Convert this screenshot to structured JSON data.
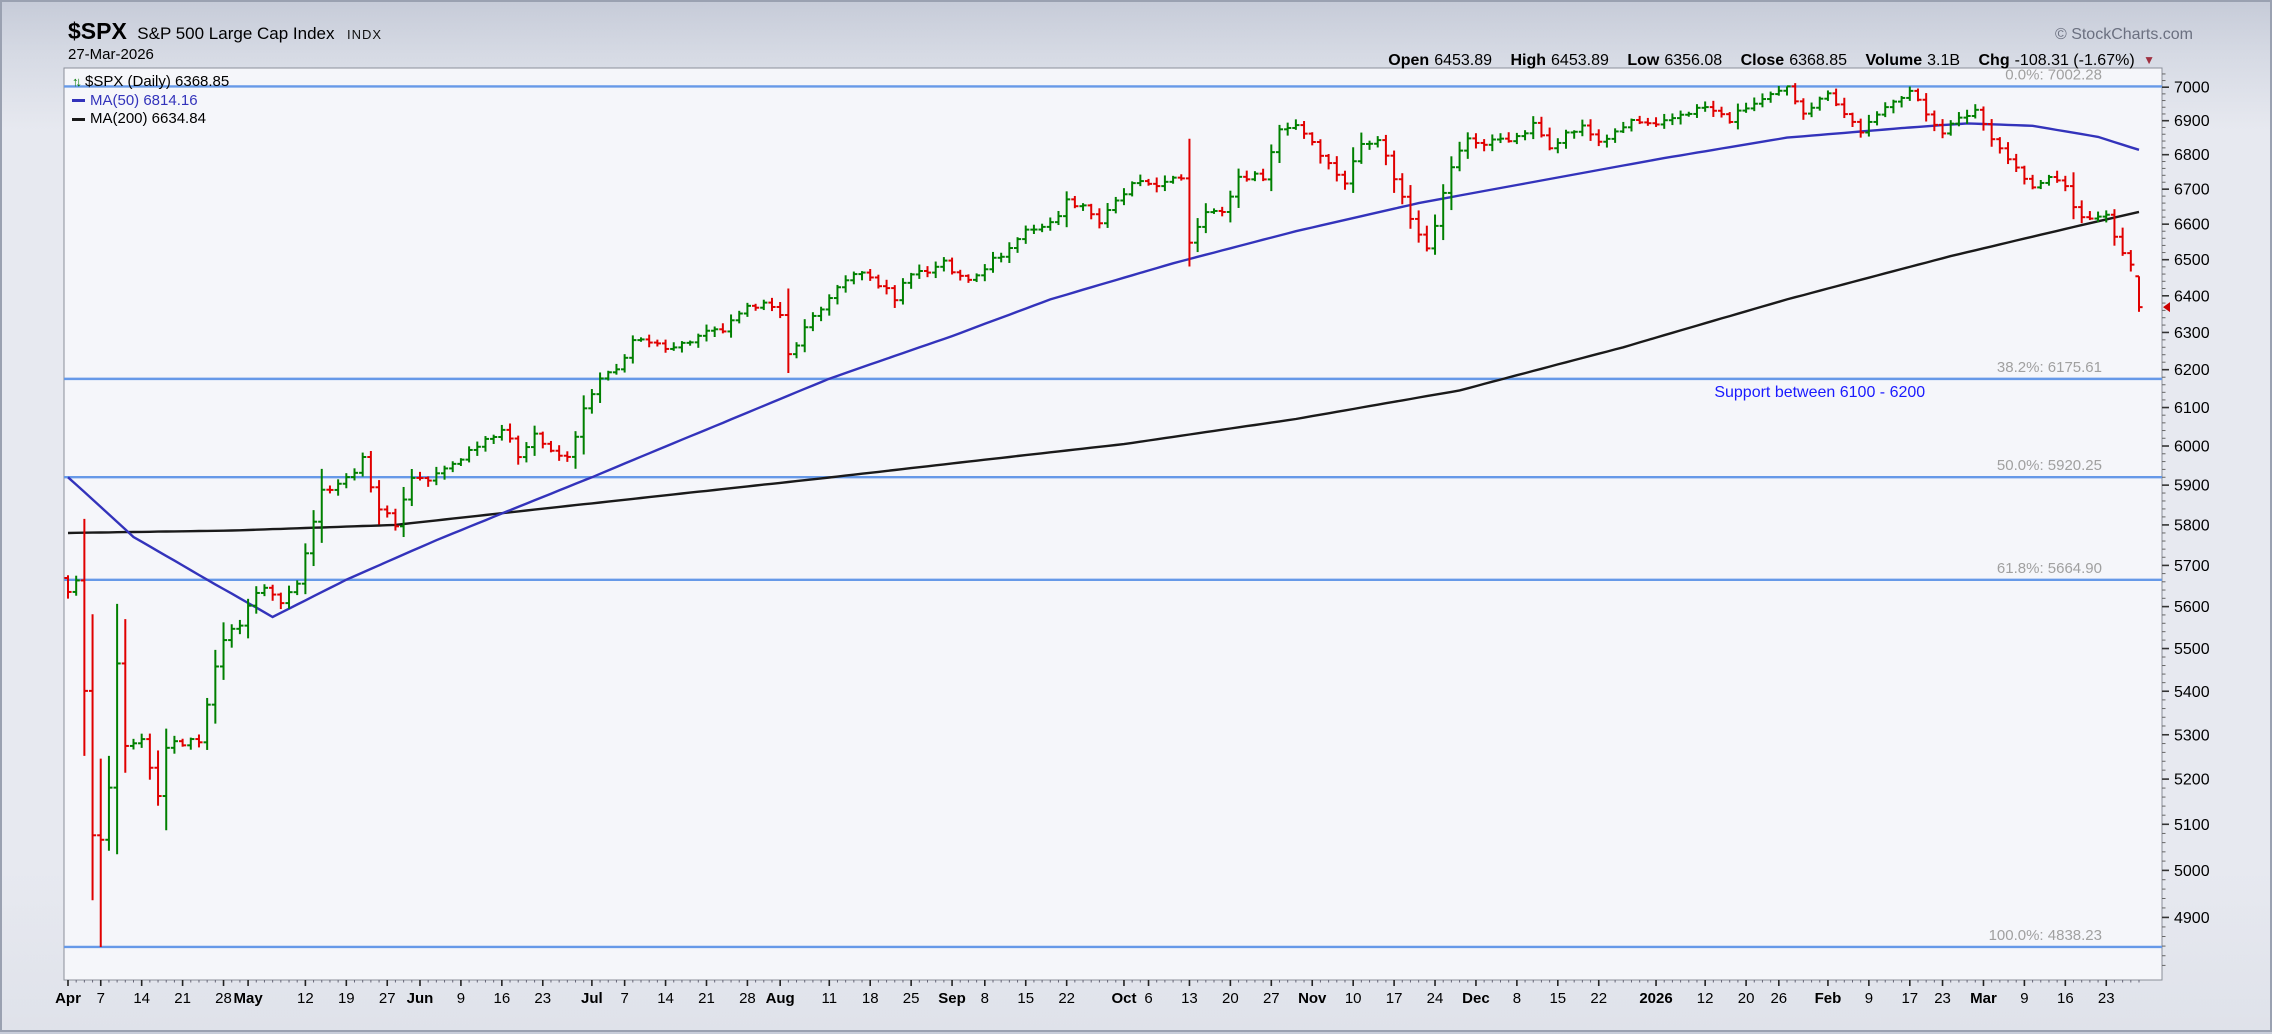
{
  "header": {
    "symbol": "$SPX",
    "name": "S&P 500 Large Cap Index",
    "exchange": "INDX",
    "date": "27-Mar-2026",
    "copyright": "© StockCharts.com"
  },
  "quote": {
    "open_label": "Open",
    "open_value": "6453.89",
    "high_label": "High",
    "high_value": "6453.89",
    "low_label": "Low",
    "low_value": "6356.08",
    "close_label": "Close",
    "close_value": "6368.85",
    "volume_label": "Volume",
    "volume_value": "3.1B",
    "chg_label": "Chg",
    "chg_value": "-108.31 (-1.67%)",
    "chg_direction_icon": "▼"
  },
  "legend": {
    "price_row": "$SPX (Daily) 6368.85",
    "ma50_row": "MA(50) 6814.16",
    "ma200_row": "MA(200) 6634.84"
  },
  "chart_data": {
    "type": "ohlc",
    "title": "$SPX S&P 500 Large Cap Index - Daily",
    "xlabel": "",
    "ylabel": "",
    "y_scale": "log",
    "y_log_domain": [
      4770,
      7058
    ],
    "y_ticks": {
      "min": 4900,
      "max": 7000,
      "step": 100,
      "minor_step": 20
    },
    "days": 253,
    "x_ticks": [
      {
        "d": 0,
        "t": "Apr",
        "b": 1
      },
      {
        "d": 4,
        "t": "7"
      },
      {
        "d": 9,
        "t": "14"
      },
      {
        "d": 14,
        "t": "21"
      },
      {
        "d": 19,
        "t": "28"
      },
      {
        "d": 22,
        "t": "May",
        "b": 1
      },
      {
        "d": 29,
        "t": "12"
      },
      {
        "d": 34,
        "t": "19"
      },
      {
        "d": 39,
        "t": "27"
      },
      {
        "d": 43,
        "t": "Jun",
        "b": 1
      },
      {
        "d": 48,
        "t": "9"
      },
      {
        "d": 53,
        "t": "16"
      },
      {
        "d": 58,
        "t": "23"
      },
      {
        "d": 64,
        "t": "Jul",
        "b": 1
      },
      {
        "d": 68,
        "t": "7"
      },
      {
        "d": 73,
        "t": "14"
      },
      {
        "d": 78,
        "t": "21"
      },
      {
        "d": 83,
        "t": "28"
      },
      {
        "d": 87,
        "t": "Aug",
        "b": 1
      },
      {
        "d": 93,
        "t": "11"
      },
      {
        "d": 98,
        "t": "18"
      },
      {
        "d": 103,
        "t": "25"
      },
      {
        "d": 108,
        "t": "Sep",
        "b": 1
      },
      {
        "d": 112,
        "t": "8"
      },
      {
        "d": 117,
        "t": "15"
      },
      {
        "d": 122,
        "t": "22"
      },
      {
        "d": 129,
        "t": "Oct",
        "b": 1
      },
      {
        "d": 132,
        "t": "6"
      },
      {
        "d": 137,
        "t": "13"
      },
      {
        "d": 142,
        "t": "20"
      },
      {
        "d": 147,
        "t": "27"
      },
      {
        "d": 152,
        "t": "Nov",
        "b": 1
      },
      {
        "d": 157,
        "t": "10"
      },
      {
        "d": 162,
        "t": "17"
      },
      {
        "d": 167,
        "t": "24"
      },
      {
        "d": 172,
        "t": "Dec",
        "b": 1
      },
      {
        "d": 177,
        "t": "8"
      },
      {
        "d": 182,
        "t": "15"
      },
      {
        "d": 187,
        "t": "22"
      },
      {
        "d": 194,
        "t": "2026",
        "b": 1
      },
      {
        "d": 200,
        "t": "12"
      },
      {
        "d": 205,
        "t": "20"
      },
      {
        "d": 209,
        "t": "26"
      },
      {
        "d": 215,
        "t": "Feb",
        "b": 1
      },
      {
        "d": 220,
        "t": "9"
      },
      {
        "d": 225,
        "t": "17"
      },
      {
        "d": 229,
        "t": "23"
      },
      {
        "d": 234,
        "t": "Mar",
        "b": 1
      },
      {
        "d": 239,
        "t": "9"
      },
      {
        "d": 244,
        "t": "16"
      },
      {
        "d": 249,
        "t": "23"
      }
    ],
    "fib_levels": [
      {
        "label": "0.0%: 7002.28",
        "value": 7002.28
      },
      {
        "label": "38.2%: 6175.61",
        "value": 6175.61
      },
      {
        "label": "50.0%: 5920.25",
        "value": 5920.25
      },
      {
        "label": "61.8%: 5664.90",
        "value": 5664.9
      },
      {
        "label": "100.0%: 4838.23",
        "value": 4838.23
      }
    ],
    "annotation": {
      "text": "Support between 6100 - 6200",
      "day": 214,
      "price": 6128
    },
    "series": [
      {
        "name": "$SPX close",
        "anchors": [
          [
            0,
            5630
          ],
          [
            1,
            5670
          ],
          [
            2,
            5396
          ],
          [
            3,
            5074
          ],
          [
            4,
            5062
          ],
          [
            5,
            5180
          ],
          [
            6,
            5457
          ],
          [
            7,
            5268
          ],
          [
            9,
            5283
          ],
          [
            11,
            5160
          ],
          [
            12,
            5275
          ],
          [
            14,
            5282
          ],
          [
            16,
            5288
          ],
          [
            17,
            5376
          ],
          [
            19,
            5525
          ],
          [
            21,
            5561
          ],
          [
            22,
            5604
          ],
          [
            24,
            5650
          ],
          [
            26,
            5607
          ],
          [
            28,
            5663
          ],
          [
            31,
            5886
          ],
          [
            34,
            5916
          ],
          [
            36,
            5963
          ],
          [
            38,
            5842
          ],
          [
            40,
            5803
          ],
          [
            42,
            5922
          ],
          [
            44,
            5912
          ],
          [
            46,
            5940
          ],
          [
            48,
            5970
          ],
          [
            50,
            6006
          ],
          [
            53,
            6045
          ],
          [
            55,
            5977
          ],
          [
            57,
            6033
          ],
          [
            59,
            5981
          ],
          [
            61,
            5968
          ],
          [
            63,
            6092
          ],
          [
            65,
            6173
          ],
          [
            67,
            6198
          ],
          [
            69,
            6279
          ],
          [
            72,
            6263
          ],
          [
            75,
            6268
          ],
          [
            78,
            6297
          ],
          [
            80,
            6306
          ],
          [
            83,
            6363
          ],
          [
            85,
            6390
          ],
          [
            87,
            6339
          ],
          [
            88,
            6238
          ],
          [
            91,
            6345
          ],
          [
            93,
            6389
          ],
          [
            96,
            6466
          ],
          [
            98,
            6450
          ],
          [
            101,
            6395
          ],
          [
            103,
            6467
          ],
          [
            105,
            6466
          ],
          [
            107,
            6501
          ],
          [
            108,
            6460
          ],
          [
            110,
            6448
          ],
          [
            112,
            6481
          ],
          [
            115,
            6532
          ],
          [
            117,
            6584
          ],
          [
            120,
            6600
          ],
          [
            122,
            6664
          ],
          [
            124,
            6656
          ],
          [
            126,
            6605
          ],
          [
            128,
            6661
          ],
          [
            130,
            6711
          ],
          [
            132,
            6716
          ],
          [
            134,
            6715
          ],
          [
            136,
            6735
          ],
          [
            137,
            6552
          ],
          [
            139,
            6644
          ],
          [
            141,
            6629
          ],
          [
            143,
            6735
          ],
          [
            146,
            6738
          ],
          [
            148,
            6875
          ],
          [
            150,
            6890
          ],
          [
            152,
            6840
          ],
          [
            154,
            6772
          ],
          [
            156,
            6720
          ],
          [
            158,
            6833
          ],
          [
            160,
            6851
          ],
          [
            162,
            6734
          ],
          [
            164,
            6617
          ],
          [
            166,
            6539
          ],
          [
            167,
            6603
          ],
          [
            169,
            6766
          ],
          [
            171,
            6849
          ],
          [
            173,
            6829
          ],
          [
            175,
            6850
          ],
          [
            177,
            6846
          ],
          [
            179,
            6886
          ],
          [
            181,
            6828
          ],
          [
            183,
            6861
          ],
          [
            185,
            6880
          ],
          [
            187,
            6840
          ],
          [
            189,
            6860
          ],
          [
            191,
            6900
          ],
          [
            194,
            6880
          ],
          [
            197,
            6920
          ],
          [
            200,
            6940
          ],
          [
            203,
            6902
          ],
          [
            205,
            6940
          ],
          [
            208,
            6970
          ],
          [
            210,
            6996
          ],
          [
            212,
            6930
          ],
          [
            214,
            6960
          ],
          [
            215,
            6990
          ],
          [
            217,
            6920
          ],
          [
            219,
            6870
          ],
          [
            221,
            6910
          ],
          [
            223,
            6965
          ],
          [
            225,
            6989
          ],
          [
            227,
            6920
          ],
          [
            229,
            6870
          ],
          [
            231,
            6902
          ],
          [
            233,
            6933
          ],
          [
            234,
            6890
          ],
          [
            236,
            6820
          ],
          [
            238,
            6760
          ],
          [
            240,
            6700
          ],
          [
            242,
            6733
          ],
          [
            244,
            6715
          ],
          [
            245,
            6640
          ],
          [
            247,
            6610
          ],
          [
            248,
            6630
          ],
          [
            249,
            6620
          ],
          [
            250,
            6560
          ],
          [
            251,
            6520
          ],
          [
            252,
            6477
          ],
          [
            253,
            6368.85
          ]
        ]
      },
      {
        "name": "MA(50)",
        "anchors": [
          [
            0,
            5920
          ],
          [
            8,
            5770
          ],
          [
            17,
            5665
          ],
          [
            25,
            5575
          ],
          [
            34,
            5665
          ],
          [
            45,
            5762
          ],
          [
            64,
            5920
          ],
          [
            80,
            6060
          ],
          [
            93,
            6176
          ],
          [
            108,
            6290
          ],
          [
            120,
            6390
          ],
          [
            135,
            6490
          ],
          [
            150,
            6580
          ],
          [
            165,
            6660
          ],
          [
            180,
            6725
          ],
          [
            195,
            6790
          ],
          [
            210,
            6850
          ],
          [
            225,
            6880
          ],
          [
            232,
            6892
          ],
          [
            240,
            6885
          ],
          [
            248,
            6852
          ],
          [
            253,
            6814.16
          ]
        ]
      },
      {
        "name": "MA(200)",
        "anchors": [
          [
            0,
            5780
          ],
          [
            20,
            5786
          ],
          [
            40,
            5800
          ],
          [
            60,
            5845
          ],
          [
            80,
            5890
          ],
          [
            92,
            5917
          ],
          [
            110,
            5960
          ],
          [
            129,
            6005
          ],
          [
            150,
            6070
          ],
          [
            170,
            6145
          ],
          [
            190,
            6260
          ],
          [
            210,
            6390
          ],
          [
            230,
            6510
          ],
          [
            245,
            6592
          ],
          [
            253,
            6634.84
          ]
        ]
      }
    ],
    "overrides": {
      "high": {
        "4": 5246,
        "210": 7002.28
      },
      "low": {
        "4": 4838.23
      }
    },
    "last_bar": {
      "open": 6453.89,
      "high": 6453.89,
      "low": 6356.08,
      "close": 6368.85
    },
    "colors": {
      "up": "#008000",
      "down": "#e00000",
      "ma50": "#3333bb",
      "ma200": "#1a1a1a",
      "fib_line": "#6699e8",
      "fib_label": "#a0a0a0",
      "annotation": "#1a1aff",
      "axis_text": "#000000",
      "plot_bg": "#f5f6fa",
      "plot_border": "#8a8f99",
      "price_marker": "#cc0000",
      "chg_triangle": "#a03040"
    },
    "legend_position": "top-left",
    "grid": "off"
  }
}
